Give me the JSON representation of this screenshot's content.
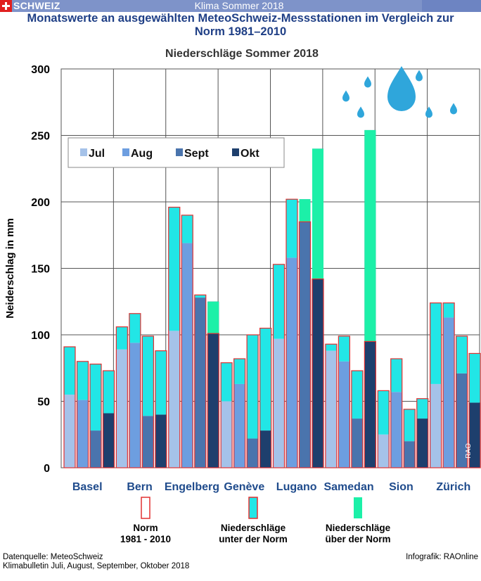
{
  "topbar": {
    "brand": "SCHWEIZ",
    "title": "Klima Sommer 2018"
  },
  "header": {
    "title_line1": "Monatswerte an ausgewählten MeteoSchweiz-Messstationen im Vergleich zur",
    "title_line2": "Norm 1981–2010"
  },
  "chart_data": {
    "type": "bar",
    "title": "Niederschläge Sommer 2018",
    "ylabel": "Neiderschlag in mm",
    "xlabel": "",
    "ylim": [
      0,
      300
    ],
    "yticks": [
      0,
      50,
      100,
      150,
      200,
      250,
      300
    ],
    "months": [
      "Jul",
      "Aug",
      "Sept",
      "Okt"
    ],
    "stations": [
      {
        "name": "Basel",
        "values": [
          55,
          51,
          28,
          41
        ],
        "norms": [
          91,
          80,
          78,
          73
        ]
      },
      {
        "name": "Bern",
        "values": [
          89,
          94,
          39,
          40
        ],
        "norms": [
          106,
          116,
          99,
          88
        ]
      },
      {
        "name": "Engelberg",
        "values": [
          103,
          169,
          128,
          125
        ],
        "norms": [
          196,
          190,
          130,
          101
        ]
      },
      {
        "name": "Genève",
        "values": [
          50,
          63,
          22,
          28
        ],
        "norms": [
          79,
          82,
          100,
          105
        ]
      },
      {
        "name": "Lugano",
        "values": [
          97,
          158,
          202,
          240
        ],
        "norms": [
          153,
          202,
          185,
          142
        ]
      },
      {
        "name": "Samedan",
        "values": [
          88,
          80,
          37,
          254
        ],
        "norms": [
          93,
          99,
          73,
          95
        ]
      },
      {
        "name": "Sion",
        "values": [
          25,
          57,
          20,
          37
        ],
        "norms": [
          58,
          82,
          44,
          52
        ]
      },
      {
        "name": "Zürich",
        "values": [
          63,
          113,
          71,
          49
        ],
        "norms": [
          124,
          124,
          99,
          86
        ]
      }
    ],
    "legend": {
      "norm": [
        "Norm",
        "1981 - 2010"
      ],
      "below": [
        "Niederschläge",
        "unter der Norm"
      ],
      "above": [
        "Niederschläge",
        "über der Norm"
      ]
    },
    "watermark": "RAO"
  },
  "colors": {
    "months": [
      "#a5c2e9",
      "#6d9ee0",
      "#4a74ad",
      "#1e3f6d"
    ],
    "norm_outline": "#e23030",
    "below": "#22e6e6",
    "above": "#1cf0a8",
    "station_label": "#1f4b8c",
    "grid": "#555555",
    "drop": "#2fa6db"
  },
  "footer": {
    "left_line1": "Datenquelle: MeteoSchweiz",
    "left_line2": "Klimabulletin Juli, August, September, Oktober 2018",
    "right": "Infografik: RAOnline"
  }
}
